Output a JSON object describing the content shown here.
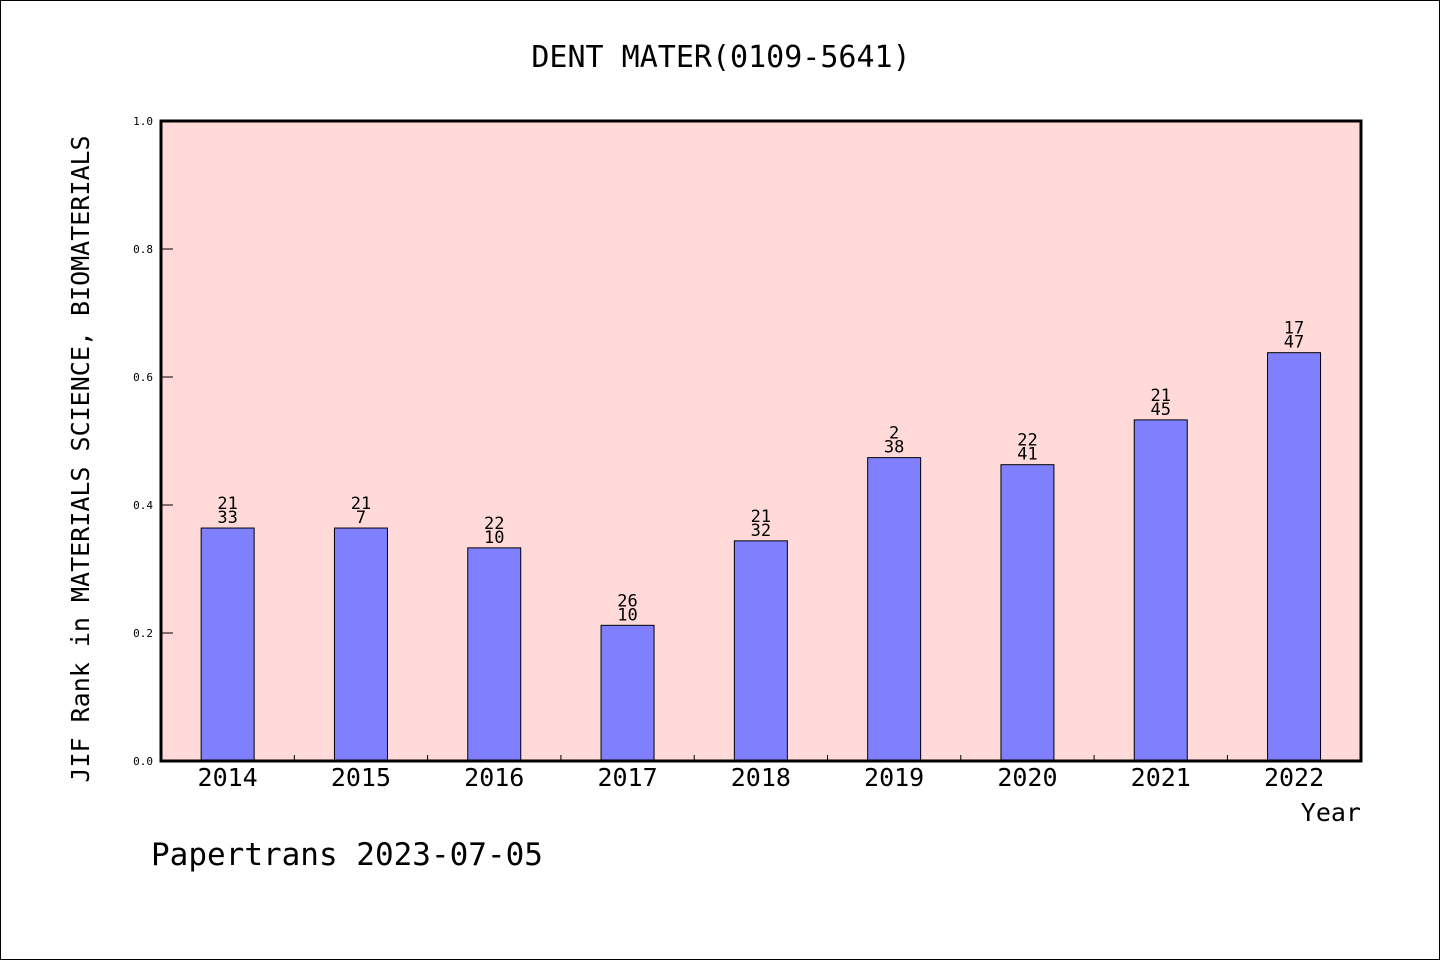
{
  "chart_data": {
    "type": "bar",
    "title": "DENT MATER(0109-5641)",
    "xlabel": "Year",
    "ylabel": "JIF Rank in MATERIALS SCIENCE, BIOMATERIALS",
    "ylim": [
      0,
      1.0
    ],
    "yticks": [
      "0.0",
      "0.2",
      "0.4",
      "0.6",
      "0.8",
      "1.0"
    ],
    "grid": false,
    "legend": "none",
    "categories": [
      "2014",
      "2015",
      "2016",
      "2017",
      "2018",
      "2019",
      "2020",
      "2021",
      "2022"
    ],
    "values": [
      0.364,
      0.364,
      0.333,
      0.212,
      0.344,
      0.474,
      0.463,
      0.533,
      0.638
    ],
    "labels_top": [
      "21",
      "21",
      "22",
      "26",
      "21",
      "2",
      "22",
      "21",
      "17"
    ],
    "labels_bottom": [
      "33",
      "7",
      "10",
      "10",
      "32",
      "38",
      "41",
      "45",
      "47"
    ],
    "colors": {
      "plot_bg": "#ffdad8",
      "bar_fill": "#8080ff",
      "bar_stroke": "#000000"
    }
  },
  "footer": "Papertrans 2023-07-05"
}
